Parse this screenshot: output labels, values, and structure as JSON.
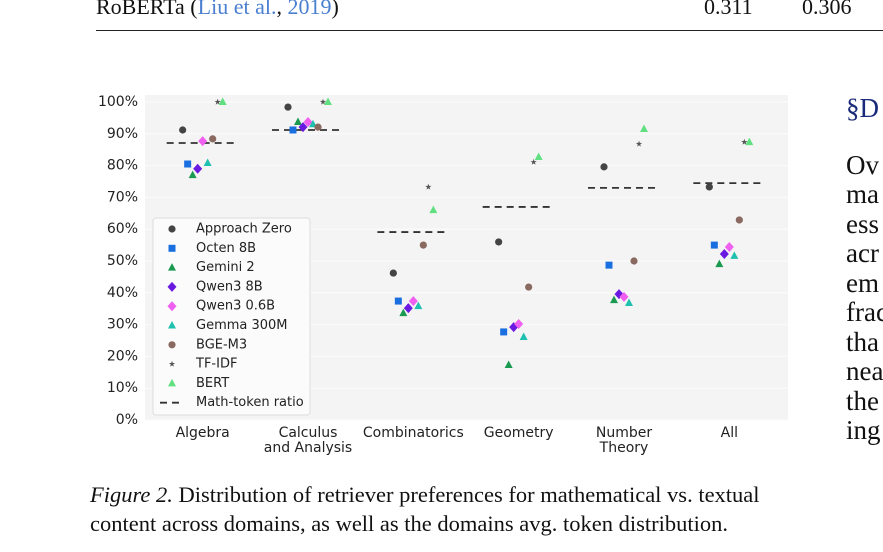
{
  "table_row": {
    "label_parts": [
      "RoBERTa (",
      "Liu et al.",
      ", ",
      "2019",
      ")"
    ],
    "values": [
      "0.311",
      "0.306"
    ]
  },
  "chart_data": {
    "type": "scatter",
    "categories": [
      "Algebra",
      "Calculus\nand Analysis",
      "Combinatorics",
      "Geometry",
      "Number\nTheory",
      "All"
    ],
    "ylim": [
      0,
      100
    ],
    "yticks": [
      {
        "value": 0,
        "label": "0%"
      },
      {
        "value": 10,
        "label": "10%"
      },
      {
        "value": 20,
        "label": "20%"
      },
      {
        "value": 30,
        "label": "30%"
      },
      {
        "value": 40,
        "label": "40%"
      },
      {
        "value": 50,
        "label": "50%"
      },
      {
        "value": 60,
        "label": "60%"
      },
      {
        "value": 70,
        "label": "70%"
      },
      {
        "value": 80,
        "label": "80%"
      },
      {
        "value": 90,
        "label": "90%"
      },
      {
        "value": 100,
        "label": "100%"
      }
    ],
    "grid": true,
    "legend": "lower left",
    "series": [
      {
        "name": "Approach Zero",
        "color": "#444444",
        "marker": "circle",
        "values": [
          91.2,
          98.4,
          46.2,
          56,
          79.6,
          73.3
        ]
      },
      {
        "name": "Octen 8B",
        "color": "#1a6fe0",
        "marker": "square",
        "values": [
          80.5,
          91.2,
          37.4,
          27.7,
          48.7,
          55
        ]
      },
      {
        "name": "Gemini 2",
        "color": "#1a9a50",
        "marker": "triangle",
        "values": [
          77,
          93.7,
          33.6,
          17.3,
          37.7,
          49
        ]
      },
      {
        "name": "Qwen3 8B",
        "color": "#6a1ae0",
        "marker": "diamond",
        "values": [
          79,
          92.1,
          35.2,
          29.2,
          39.6,
          52.2
        ]
      },
      {
        "name": "Qwen3 0.6B",
        "color": "#f060f0",
        "marker": "diamond",
        "values": [
          87.7,
          93.7,
          37.4,
          30.2,
          38.7,
          54.4
        ]
      },
      {
        "name": "Gemma 300M",
        "color": "#20c0b0",
        "marker": "triangle",
        "values": [
          80.8,
          93,
          35.8,
          26.1,
          36.8,
          51.6
        ]
      },
      {
        "name": "BGE-M3",
        "color": "#8a6a60",
        "marker": "circle",
        "values": [
          88.4,
          92.1,
          55,
          41.8,
          50,
          62.9
        ]
      },
      {
        "name": "TF-IDF",
        "color": "#555555",
        "marker": "star",
        "values": [
          100,
          100,
          73.3,
          81.1,
          86.8,
          87.4
        ]
      },
      {
        "name": "BERT",
        "color": "#60e080",
        "marker": "triangle",
        "values": [
          100,
          100,
          66,
          82.7,
          91.5,
          87.4
        ]
      }
    ],
    "reference_line": {
      "name": "Math-token ratio",
      "color": "#333333",
      "values": [
        87.1,
        91.2,
        59.1,
        67,
        73,
        74.5
      ]
    }
  },
  "caption": {
    "label": "Figure 2.",
    "text": "Distribution of retriever preferences for mathematical vs. textual content across domains, as well as the domains avg. token distribution."
  },
  "right_column": {
    "heading": "§D",
    "lines": [
      "Ov",
      "ma",
      "ess",
      "acr",
      "em",
      "frac",
      "tha",
      "nea",
      "the",
      "ing"
    ]
  }
}
